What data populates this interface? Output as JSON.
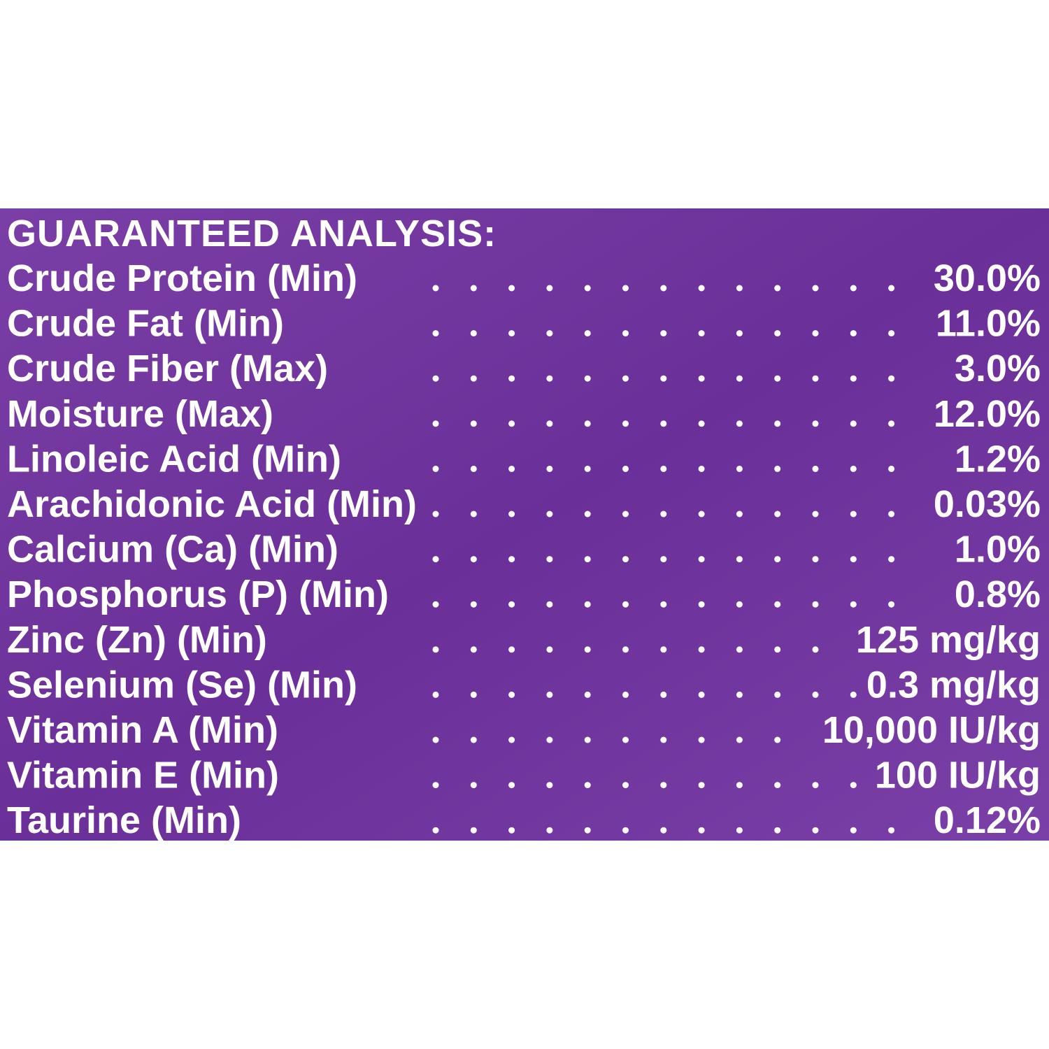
{
  "panel": {
    "title": "GUARANTEED ANALYSIS:",
    "rows": [
      {
        "label": "Crude Protein (Min)",
        "value": "30.0%"
      },
      {
        "label": "Crude Fat (Min)",
        "value": "11.0%"
      },
      {
        "label": "Crude Fiber (Max)",
        "value": "3.0%"
      },
      {
        "label": "Moisture (Max)",
        "value": "12.0%"
      },
      {
        "label": "Linoleic Acid (Min)",
        "value": "1.2%"
      },
      {
        "label": "Arachidonic Acid (Min)",
        "value": "0.03%"
      },
      {
        "label": "Calcium (Ca) (Min)",
        "value": "1.0%"
      },
      {
        "label": "Phosphorus (P) (Min)",
        "value": "0.8%"
      },
      {
        "label": "Zinc (Zn) (Min)",
        "value": "125 mg/kg"
      },
      {
        "label": "Selenium (Se) (Min)",
        "value": "0.3 mg/kg"
      },
      {
        "label": "Vitamin A (Min)",
        "value": "10,000 IU/kg"
      },
      {
        "label": "Vitamin E (Min)",
        "value": "100 IU/kg"
      },
      {
        "label": "Taurine (Min)",
        "value": "0.12%"
      }
    ]
  }
}
